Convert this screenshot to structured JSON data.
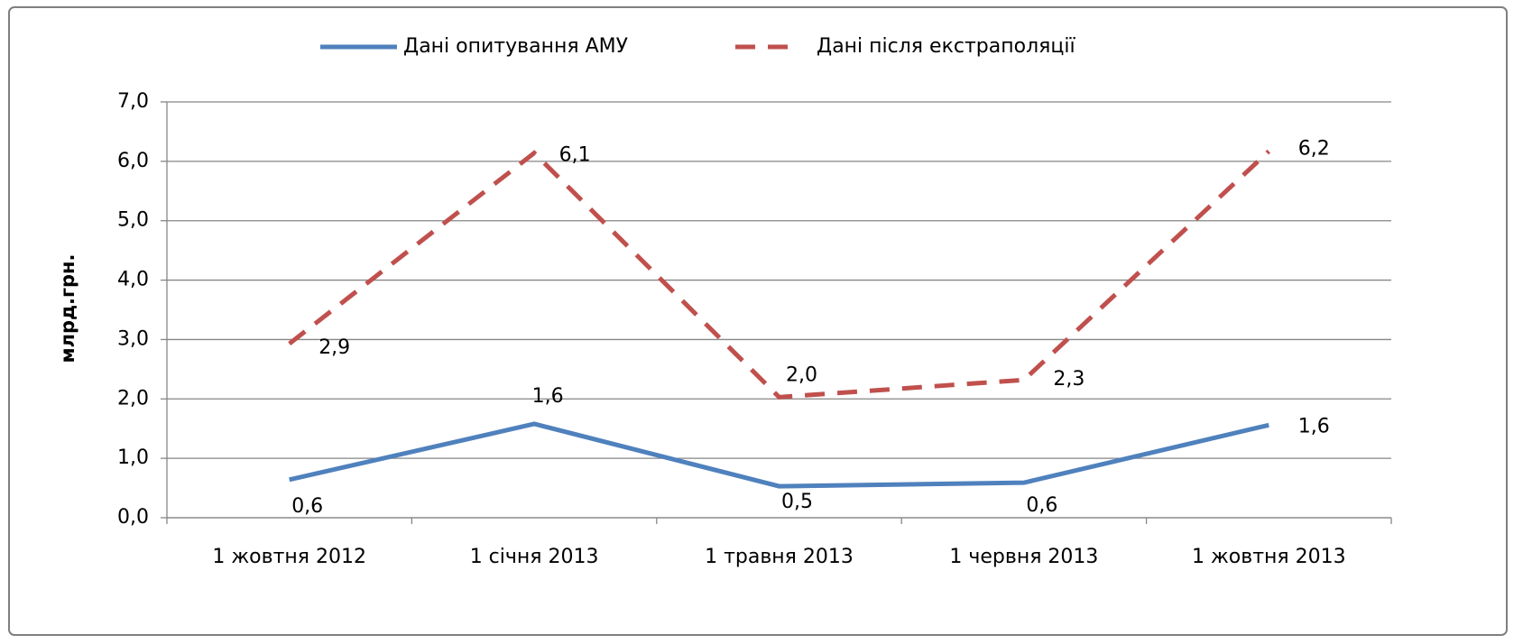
{
  "chart_data": {
    "type": "line",
    "y_label": "млрд.грн.",
    "categories": [
      "1 жовтня 2012",
      "1 січня 2013",
      "1 травня 2013",
      "1 червня 2013",
      "1 жовтня 2013"
    ],
    "series": [
      {
        "name": "Дані опитування АМУ",
        "color": "#4f81bd",
        "dashed": false,
        "values": [
          0.64,
          1.58,
          0.53,
          0.59,
          1.56
        ],
        "value_labels": [
          "0,6",
          "1,6",
          "0,5",
          "0,6",
          "1,6"
        ]
      },
      {
        "name": "Дані після екстраполяції",
        "color": "#c0504d",
        "dashed": true,
        "values": [
          2.93,
          6.14,
          2.03,
          2.32,
          6.17
        ],
        "value_labels": [
          "2,9",
          "6,1",
          "2,0",
          "2,3",
          "6,2"
        ]
      }
    ],
    "ylim": [
      0,
      7
    ],
    "yticks": [
      {
        "value": 0,
        "label": "0,0"
      },
      {
        "value": 1,
        "label": "1,0"
      },
      {
        "value": 2,
        "label": "2,0"
      },
      {
        "value": 3,
        "label": "3,0"
      },
      {
        "value": 4,
        "label": "4,0"
      },
      {
        "value": 5,
        "label": "5,0"
      },
      {
        "value": 6,
        "label": "6,0"
      },
      {
        "value": 7,
        "label": "7,0"
      }
    ],
    "grid": true,
    "legend": "top"
  }
}
